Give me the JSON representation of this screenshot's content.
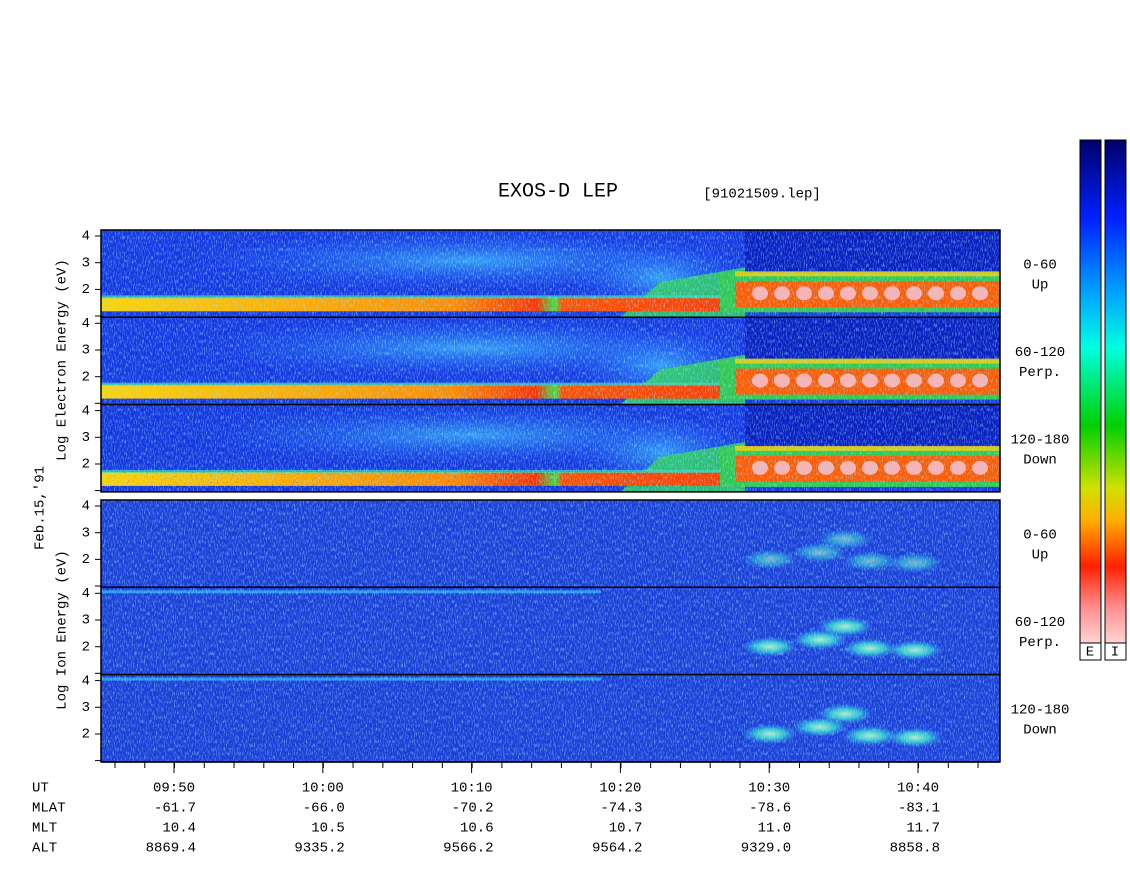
{
  "title": "EXOS-D LEP",
  "file": "[91021509.lep]",
  "date": "Feb.15,'91",
  "electron": {
    "axis_label": "Log Electron Energy (eV)",
    "panels": [
      {
        "angle": "0-60",
        "direction": "Up"
      },
      {
        "angle": "60-120",
        "direction": "Perp."
      },
      {
        "angle": "120-180",
        "direction": "Down"
      }
    ]
  },
  "ion": {
    "axis_label": "Log Ion Energy (eV)",
    "panels": [
      {
        "angle": "0-60",
        "direction": "Up"
      },
      {
        "angle": "60-120",
        "direction": "Perp."
      },
      {
        "angle": "120-180",
        "direction": "Down"
      }
    ]
  },
  "energy_ticks": [
    4,
    3,
    2
  ],
  "colorbar": [
    "E",
    "I"
  ],
  "orbit": {
    "row_labels": [
      "UT",
      "MLAT",
      "MLT",
      "ALT"
    ],
    "columns": [
      [
        "09:50",
        "-61.7",
        "10.4",
        "8869.4"
      ],
      [
        "10:00",
        "-66.0",
        "10.5",
        "9335.2"
      ],
      [
        "10:10",
        "-70.2",
        "10.6",
        "9566.2"
      ],
      [
        "10:20",
        "-74.3",
        "10.7",
        "9564.2"
      ],
      [
        "10:30",
        "-78.6",
        "11.0",
        "9329.0"
      ],
      [
        "10:40",
        "-83.1",
        "11.7",
        "8858.8"
      ]
    ]
  }
}
